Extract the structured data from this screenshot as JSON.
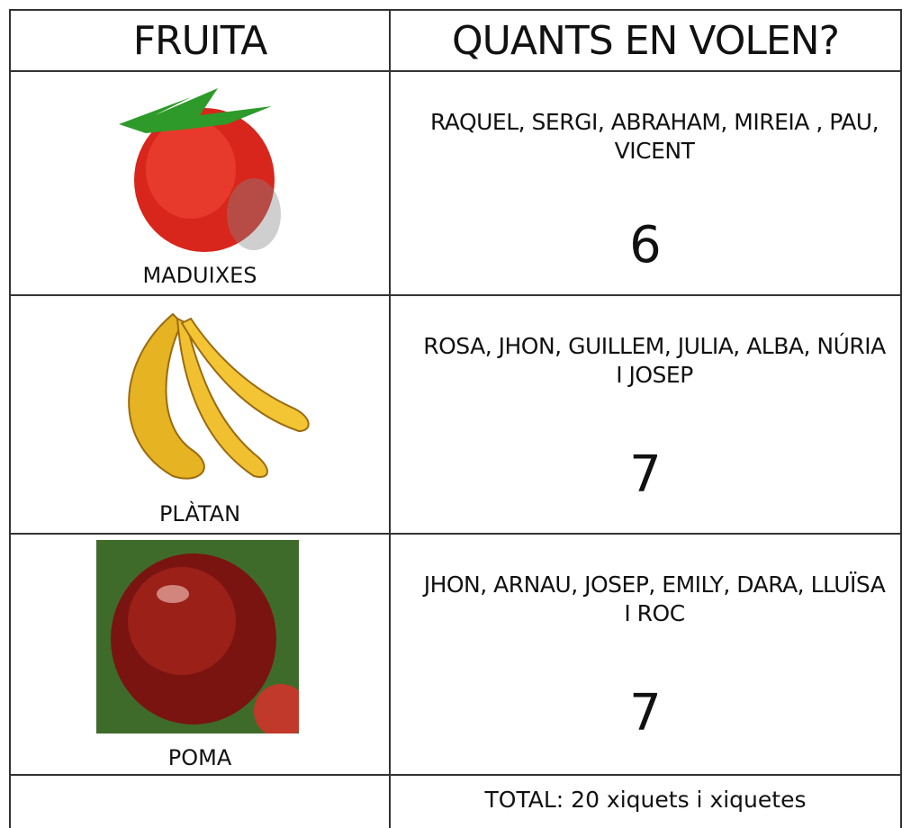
{
  "table": {
    "headers": [
      "FRUITA",
      "QUANTS EN VOLEN?"
    ],
    "rows": [
      {
        "fruit": "MADUIXES",
        "names": "RAQUEL, SERGI, ABRAHAM, MIREIA , PAU, VICENT",
        "count": 6
      },
      {
        "fruit": "PLÀTAN",
        "names": "ROSA, JHON, GUILLEM, JULIA, ALBA, NÚRIA I JOSEP",
        "count": 7
      },
      {
        "fruit": "POMA",
        "names": "JHON, ARNAU, JOSEP, EMILY, DARA, LLUÏSA I ROC",
        "count": 7
      }
    ],
    "total": "TOTAL: 20 xiquets i xiquetes"
  }
}
